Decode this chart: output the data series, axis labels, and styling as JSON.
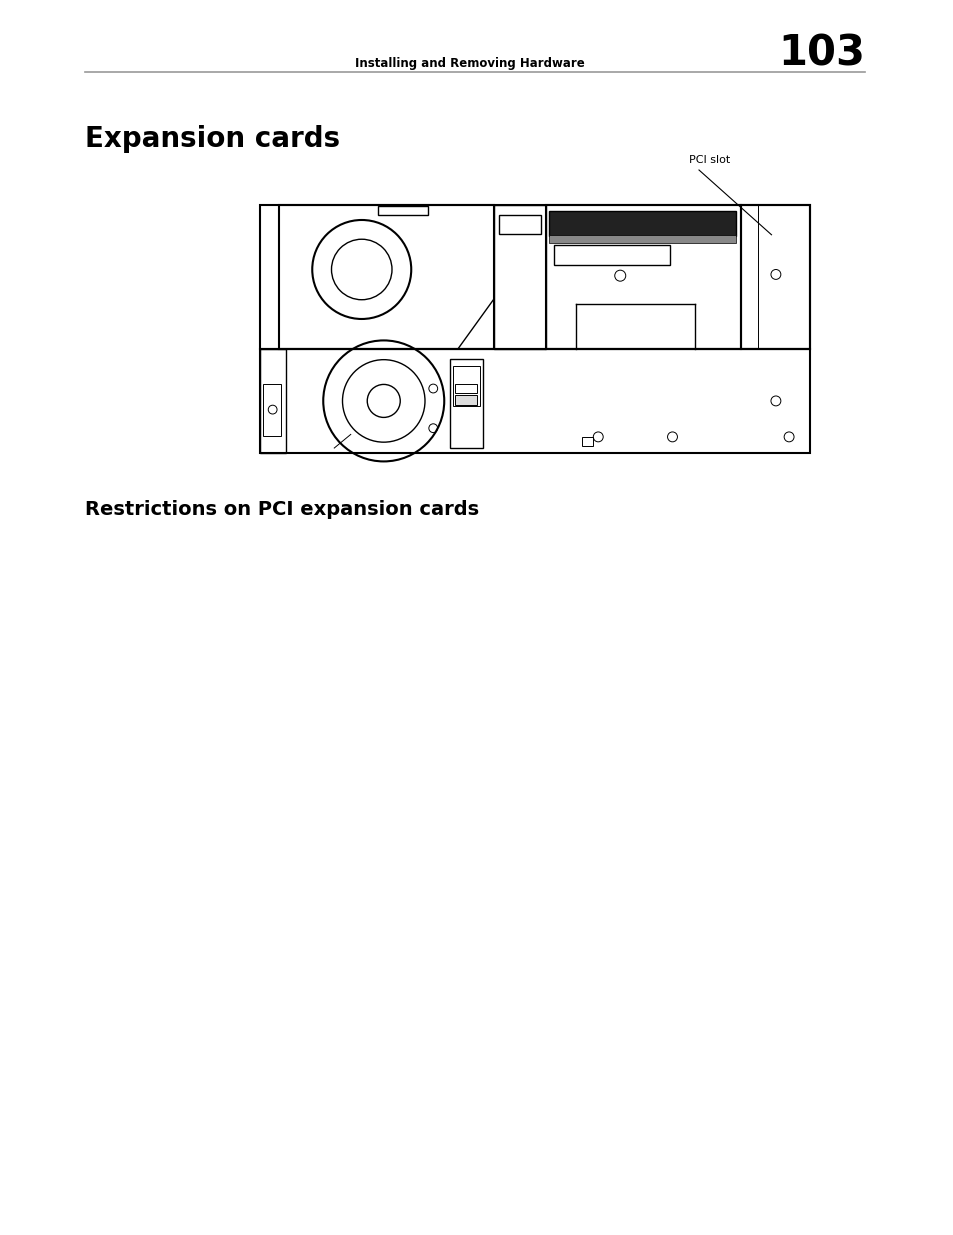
{
  "bg_color": "#ffffff",
  "header_text": "Installing and Removing Hardware",
  "page_number": "103",
  "section_title": "Expansion cards",
  "subsection_title": "Restrictions on PCI expansion cards",
  "pci_slot_label": "PCI slot",
  "header_line_color": "#aaaaaa"
}
